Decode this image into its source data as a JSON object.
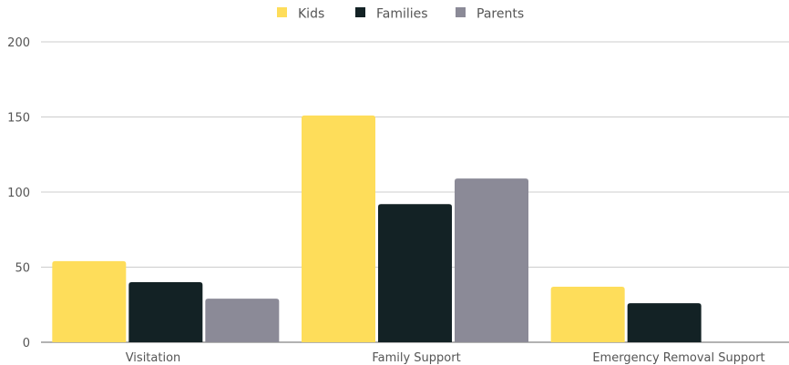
{
  "chart_data": {
    "type": "bar",
    "categories": [
      "Visitation",
      "Family Support",
      "Emergency Removal Support"
    ],
    "series": [
      {
        "name": "Kids",
        "color": "#FEDD5A",
        "values": [
          54,
          151,
          37
        ]
      },
      {
        "name": "Families",
        "color": "#132225",
        "values": [
          40,
          92,
          26
        ]
      },
      {
        "name": "Parents",
        "color": "#8B8A97",
        "values": [
          29,
          109,
          0
        ]
      }
    ],
    "y_ticks": [
      "0",
      "50",
      "100",
      "150",
      "200"
    ],
    "ylim": [
      0,
      200
    ],
    "grid": true,
    "legend_position": "top-center"
  }
}
